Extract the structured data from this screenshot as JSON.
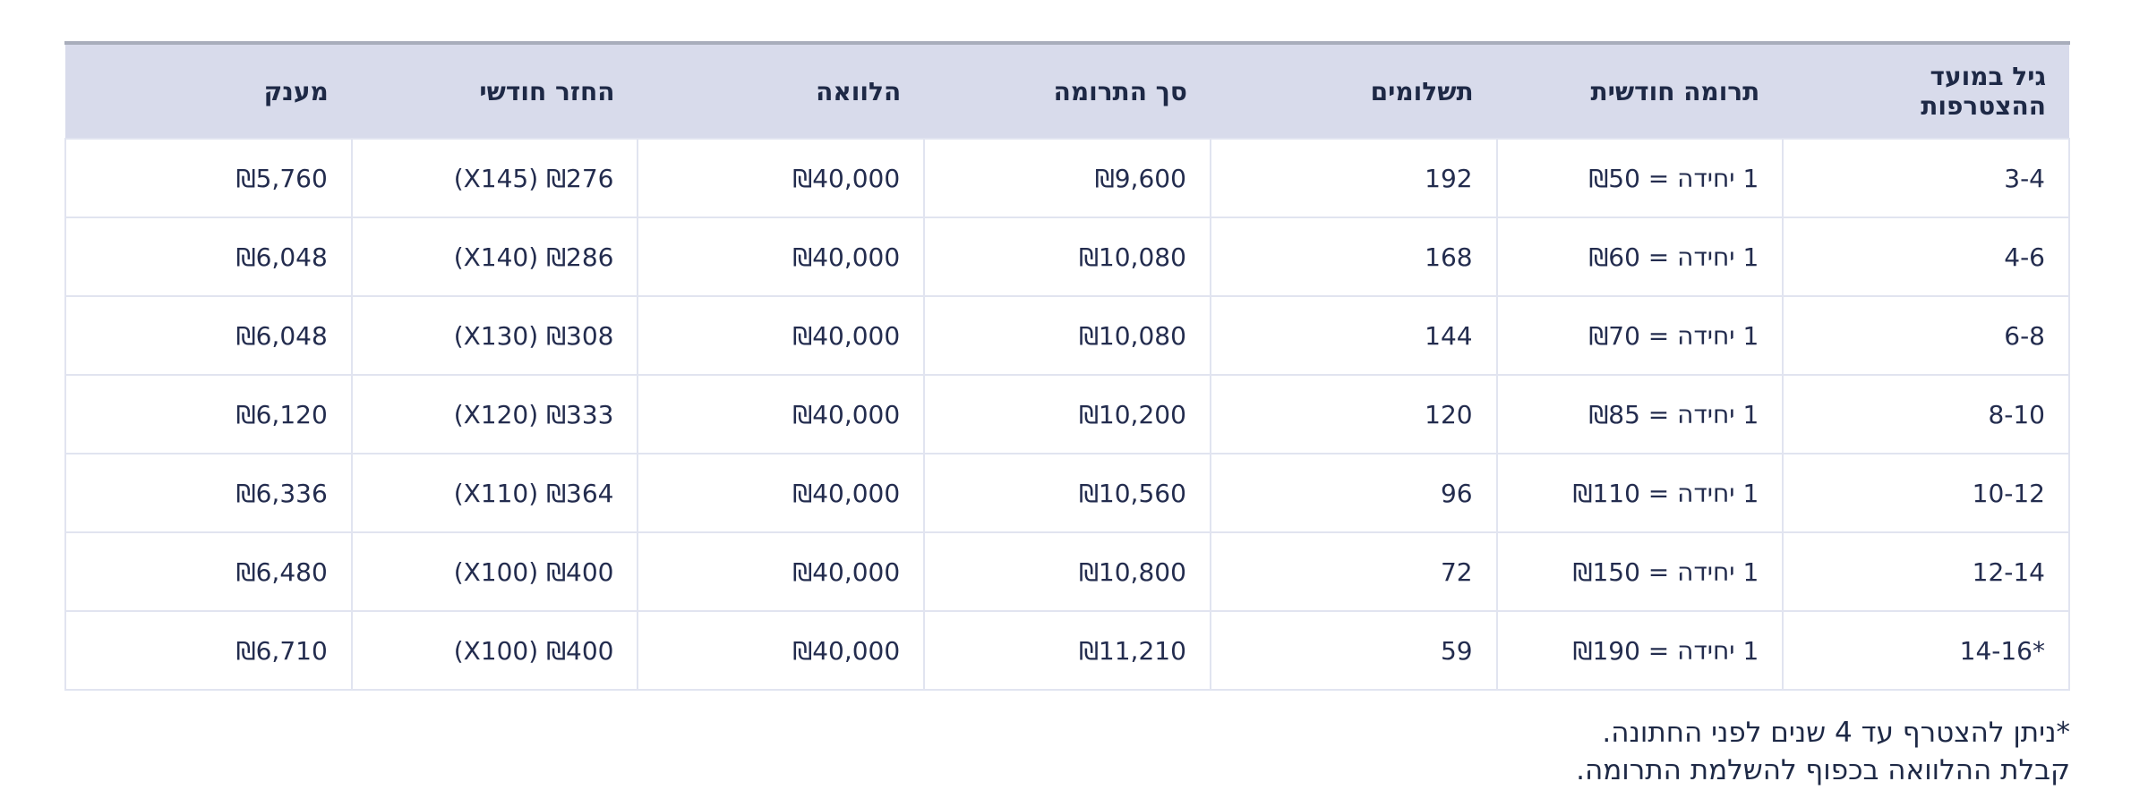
{
  "chart_data": {
    "type": "table",
    "columns": [
      {
        "key": "age",
        "label": "גיל במועד ההצטרפות"
      },
      {
        "key": "monthly_contribution",
        "label": "תרומה חודשית"
      },
      {
        "key": "payments",
        "label": "תשלומים"
      },
      {
        "key": "total_contribution",
        "label": "סך התרומה"
      },
      {
        "key": "loan",
        "label": "הלוואה"
      },
      {
        "key": "monthly_repayment",
        "label": "החזר חודשי"
      },
      {
        "key": "grant",
        "label": "מענק"
      }
    ],
    "rows": [
      {
        "age": "3-4",
        "monthly_contribution": "1 יחידה = ₪50",
        "payments": "192",
        "total_contribution": "₪9,600",
        "loan": "₪40,000",
        "monthly_repayment": "₪276 (X145)",
        "grant": "₪5,760"
      },
      {
        "age": "4-6",
        "monthly_contribution": "1 יחידה = ₪60",
        "payments": "168",
        "total_contribution": "₪10,080",
        "loan": "₪40,000",
        "monthly_repayment": "₪286 (X140)",
        "grant": "₪6,048"
      },
      {
        "age": "6-8",
        "monthly_contribution": "1 יחידה = ₪70",
        "payments": "144",
        "total_contribution": "₪10,080",
        "loan": "₪40,000",
        "monthly_repayment": "₪308 (X130)",
        "grant": "₪6,048"
      },
      {
        "age": "8-10",
        "monthly_contribution": "1 יחידה = ₪85",
        "payments": "120",
        "total_contribution": "₪10,200",
        "loan": "₪40,000",
        "monthly_repayment": "₪333 (X120)",
        "grant": "₪6,120"
      },
      {
        "age": "10-12",
        "monthly_contribution": "1 יחידה = ₪110",
        "payments": "96",
        "total_contribution": "₪10,560",
        "loan": "₪40,000",
        "monthly_repayment": "₪364 (X110)",
        "grant": "₪6,336"
      },
      {
        "age": "12-14",
        "monthly_contribution": "1 יחידה = ₪150",
        "payments": "72",
        "total_contribution": "₪10,800",
        "loan": "₪40,000",
        "monthly_repayment": "₪400 (X100)",
        "grant": "₪6,480"
      },
      {
        "age": "*14-16",
        "monthly_contribution": "1 יחידה = ₪190",
        "payments": "59",
        "total_contribution": "₪11,210",
        "loan": "₪40,000",
        "monthly_repayment": "₪400 (X100)",
        "grant": "₪6,710"
      }
    ]
  },
  "footnotes": [
    "*ניתן להצטרף עד 4 שנים לפני החתונה.",
    "קבלת ההלוואה בכפוף להשלמת התרומה."
  ],
  "colors": {
    "header_background": "#d8dbeb",
    "top_border": "#a8adbb",
    "cell_border": "#e1e4f0",
    "text": "#1e2946",
    "page_background": "#ffffff"
  }
}
